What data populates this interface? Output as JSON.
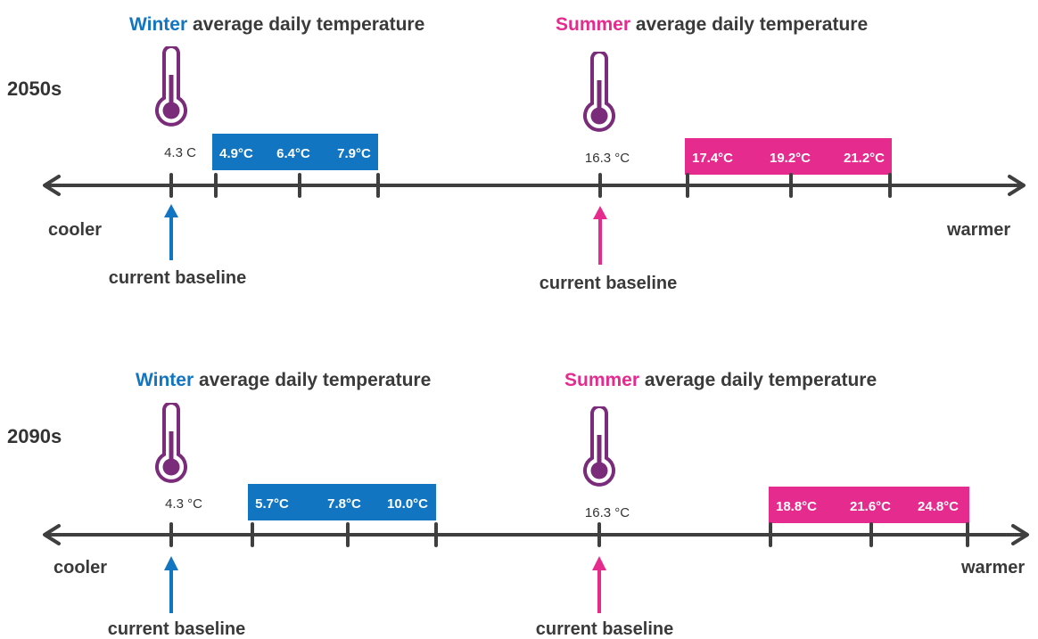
{
  "colors": {
    "winter": "#1275c2",
    "summer": "#e52b8e",
    "thermometer": "#7a2c7b",
    "axis": "#3f3f3f",
    "text": "#333333",
    "box_text": "#ffffff"
  },
  "panels": [
    {
      "period": "2050s",
      "winter": {
        "heading_highlight": "Winter",
        "heading_rest": " average daily temperature",
        "baseline_label": "4.3 C",
        "projections": [
          "4.9°C",
          "6.4°C",
          "7.9°C"
        ],
        "baseline_caption": "current baseline"
      },
      "summer": {
        "heading_highlight": "Summer",
        "heading_rest": " average daily temperature",
        "baseline_label": "16.3 °C",
        "projections": [
          "17.4°C",
          "19.2°C",
          "21.2°C"
        ],
        "baseline_caption": "current baseline"
      },
      "left_label": "cooler",
      "right_label": "warmer"
    },
    {
      "period": "2090s",
      "winter": {
        "heading_highlight": "Winter",
        "heading_rest": " average daily temperature",
        "baseline_label": "4.3 °C",
        "projections": [
          "5.7°C",
          "7.8°C",
          "10.0°C"
        ],
        "baseline_caption": "current baseline"
      },
      "summer": {
        "heading_highlight": "Summer",
        "heading_rest": " average daily temperature",
        "baseline_label": "16.3 °C",
        "projections": [
          "18.8°C",
          "21.6°C",
          "24.8°C"
        ],
        "baseline_caption": "current baseline"
      },
      "left_label": "cooler",
      "right_label": "warmer"
    }
  ]
}
